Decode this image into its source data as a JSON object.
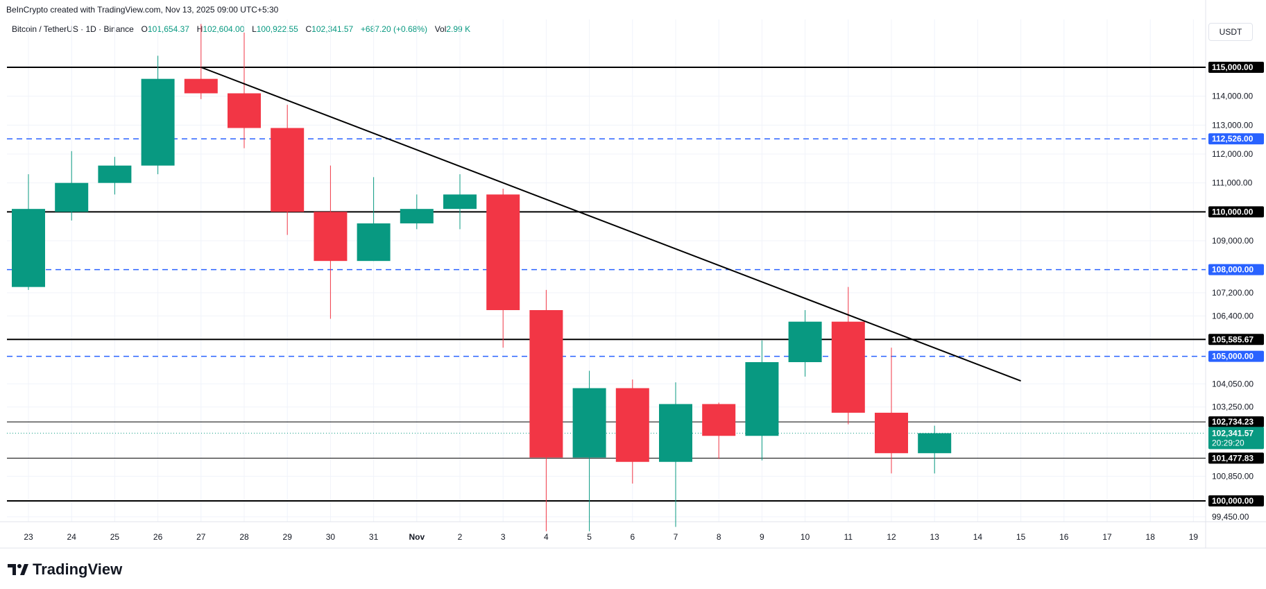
{
  "header": {
    "credit": "BeInCrypto created with TradingView.com, Nov 13, 2025 09:00 UTC+5:30",
    "symbol": "Bitcoin / TetherUS · 1D · Binance",
    "o_label": "O",
    "o_value": "101,654.37",
    "h_label": "H",
    "h_value": "102,604.00",
    "l_label": "L",
    "l_value": "100,922.55",
    "c_label": "C",
    "c_value": "102,341.57",
    "change": "+687.20 (+0.68%)",
    "vol_label": "Vol",
    "vol_value": "2.99 K"
  },
  "currency_button": "USDT",
  "brand": "TradingView",
  "colors": {
    "up": "#089981",
    "down": "#f23645",
    "level_line": "#000000",
    "dashed_level": "#2962ff",
    "grid": "#f0f3fa",
    "trendline": "#000000"
  },
  "chart_data": {
    "type": "candlestick",
    "x_tick_labels": [
      "23",
      "24",
      "25",
      "26",
      "27",
      "28",
      "29",
      "30",
      "31",
      "Nov",
      "2",
      "3",
      "4",
      "5",
      "6",
      "7",
      "8",
      "9",
      "10",
      "11",
      "12",
      "13",
      "14",
      "15",
      "16",
      "17",
      "18",
      "19"
    ],
    "y_tick_labels": [
      "114,000.00",
      "113,000.00",
      "112,000.00",
      "111,000.00",
      "109,000.00",
      "107,200.00",
      "106,400.00",
      "104,050.00",
      "103,250.00",
      "100,850.00",
      "99,450.00"
    ],
    "ylim": [
      98800,
      116000
    ],
    "candles": [
      {
        "date": "23",
        "open": 107400,
        "high": 111300,
        "low": 107300,
        "close": 110100
      },
      {
        "date": "24",
        "open": 110000,
        "high": 112100,
        "low": 109700,
        "close": 111000
      },
      {
        "date": "25",
        "open": 111000,
        "high": 111900,
        "low": 110600,
        "close": 111600
      },
      {
        "date": "26",
        "open": 111600,
        "high": 115400,
        "low": 111300,
        "close": 114600
      },
      {
        "date": "27",
        "open": 114600,
        "high": 116500,
        "low": 113900,
        "close": 114100
      },
      {
        "date": "28",
        "open": 114100,
        "high": 116200,
        "low": 112200,
        "close": 112900
      },
      {
        "date": "29",
        "open": 112900,
        "high": 113700,
        "low": 109200,
        "close": 110000
      },
      {
        "date": "30",
        "open": 110000,
        "high": 111600,
        "low": 106300,
        "close": 108300
      },
      {
        "date": "31",
        "open": 108300,
        "high": 111200,
        "low": 108300,
        "close": 109600
      },
      {
        "date": "Nov",
        "open": 109600,
        "high": 110600,
        "low": 109400,
        "close": 110100
      },
      {
        "date": "2",
        "open": 110100,
        "high": 111300,
        "low": 109400,
        "close": 110600
      },
      {
        "date": "3",
        "open": 110600,
        "high": 110800,
        "low": 105300,
        "close": 106600
      },
      {
        "date": "4",
        "open": 106600,
        "high": 107300,
        "low": 98950,
        "close": 101500
      },
      {
        "date": "5",
        "open": 101500,
        "high": 104500,
        "low": 98950,
        "close": 103900
      },
      {
        "date": "6",
        "open": 103900,
        "high": 104200,
        "low": 100600,
        "close": 101350
      },
      {
        "date": "7",
        "open": 101350,
        "high": 104100,
        "low": 99100,
        "close": 103350
      },
      {
        "date": "8",
        "open": 103350,
        "high": 103400,
        "low": 101450,
        "close": 102250
      },
      {
        "date": "9",
        "open": 102250,
        "high": 105550,
        "low": 101400,
        "close": 104800
      },
      {
        "date": "10",
        "open": 104800,
        "high": 106600,
        "low": 104300,
        "close": 106200
      },
      {
        "date": "11",
        "open": 106200,
        "high": 107400,
        "low": 102650,
        "close": 103050
      },
      {
        "date": "12",
        "open": 103050,
        "high": 105300,
        "low": 100950,
        "close": 101650
      },
      {
        "date": "13",
        "open": 101650,
        "high": 102600,
        "low": 100950,
        "close": 102341.57
      }
    ],
    "horizontal_levels": [
      {
        "value": 115000,
        "label": "115,000.00",
        "style": "solid",
        "color": "#000000"
      },
      {
        "value": 112526,
        "label": "112,526.00",
        "style": "dashed",
        "color": "#2962ff"
      },
      {
        "value": 110000,
        "label": "110,000.00",
        "style": "solid",
        "color": "#000000"
      },
      {
        "value": 108000,
        "label": "108,000.00",
        "style": "dashed",
        "color": "#2962ff"
      },
      {
        "value": 105585.67,
        "label": "105,585.67",
        "style": "solid",
        "color": "#000000"
      },
      {
        "value": 105000,
        "label": "105,000.00",
        "style": "dashed",
        "color": "#2962ff"
      },
      {
        "value": 102734.23,
        "label": "102,734.23",
        "style": "thin",
        "color": "#000000"
      },
      {
        "value": 101477.83,
        "label": "101,477.83",
        "style": "thin",
        "color": "#000000"
      },
      {
        "value": 100000,
        "label": "100,000.00",
        "style": "solid",
        "color": "#000000"
      }
    ],
    "current_price": {
      "value": 102341.57,
      "label": "102,341.57",
      "countdown": "20:29:20"
    },
    "trendline": {
      "start": {
        "date": "27",
        "price": 115000
      },
      "end": {
        "date": "15",
        "price": 104150
      }
    }
  }
}
